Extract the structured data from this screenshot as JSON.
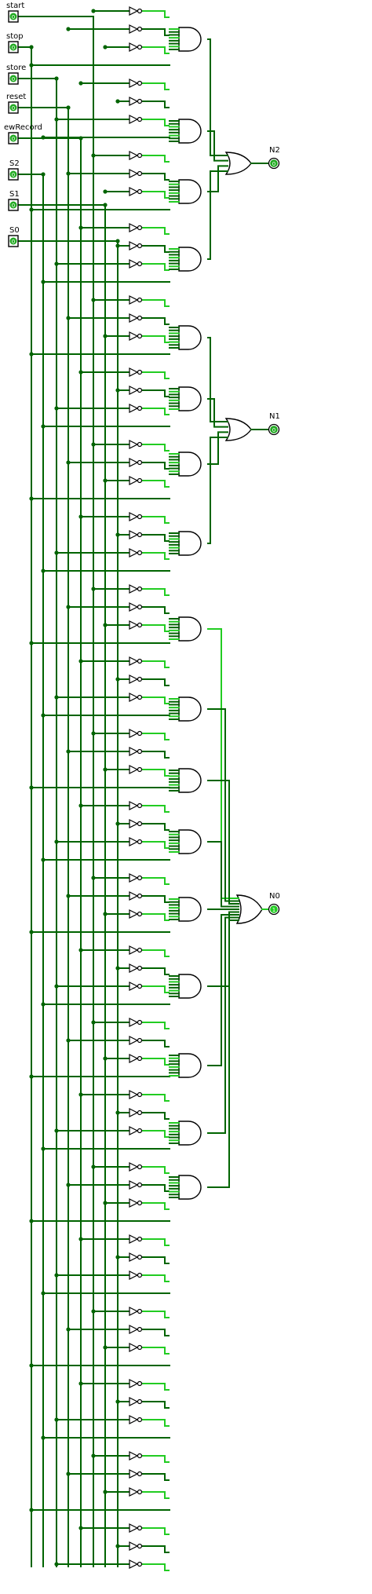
{
  "inputs": [
    {
      "name": "start",
      "value": "0"
    },
    {
      "name": "stop",
      "value": "0"
    },
    {
      "name": "store",
      "value": "0"
    },
    {
      "name": "reset",
      "value": "0"
    },
    {
      "name": "ewRecord",
      "value": "0"
    },
    {
      "name": "S2",
      "value": "0"
    },
    {
      "name": "S1",
      "value": "0"
    },
    {
      "name": "S0",
      "value": "0"
    }
  ],
  "outputs": [
    {
      "name": "N2",
      "value": "0"
    },
    {
      "name": "N1",
      "value": "0"
    },
    {
      "name": "N0",
      "value": "1"
    }
  ],
  "colors": {
    "wire_low": "#006400",
    "wire_high": "#22cc22",
    "gate": "#000000",
    "pin_fill": "#22aa22"
  }
}
